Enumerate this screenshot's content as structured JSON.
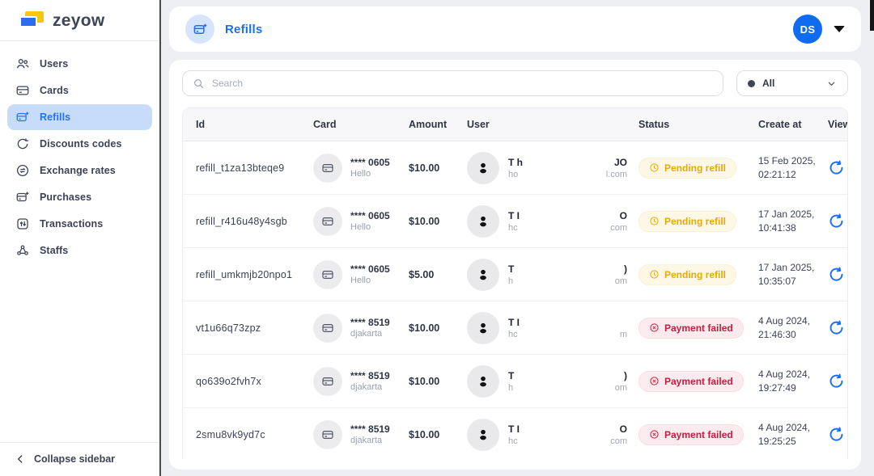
{
  "sidebar": {
    "logo_text": "zeyow",
    "items": [
      {
        "label": "Users",
        "icon": "users-icon",
        "active": false
      },
      {
        "label": "Cards",
        "icon": "cards-icon",
        "active": false
      },
      {
        "label": "Refills",
        "icon": "refills-icon",
        "active": true
      },
      {
        "label": "Discounts codes",
        "icon": "discounts-icon",
        "active": false
      },
      {
        "label": "Exchange rates",
        "icon": "exchange-icon",
        "active": false
      },
      {
        "label": "Purchases",
        "icon": "purchases-icon",
        "active": false
      },
      {
        "label": "Transactions",
        "icon": "transactions-icon",
        "active": false
      },
      {
        "label": "Staffs",
        "icon": "staffs-icon",
        "active": false
      }
    ],
    "collapse_label": "Collapse sidebar"
  },
  "header": {
    "title": "Refills",
    "avatar_initials": "DS"
  },
  "filters": {
    "search_placeholder": "Search",
    "status_filter_value": "All"
  },
  "table": {
    "columns": [
      "Id",
      "Card",
      "Amount",
      "User",
      "Status",
      "Create at",
      "View"
    ],
    "rows": [
      {
        "id": "refill_t1za13bteqe9",
        "card_last4": "**** 0605",
        "card_name": "Hello",
        "amount": "$10.00",
        "user_name_left": "T h",
        "user_name_right": "JO",
        "user_email_left": "ho",
        "user_email_right": "l.com",
        "status": "Pending refill",
        "status_type": "pending",
        "created_at": "15 Feb 2025, 02:21:12"
      },
      {
        "id": "refill_r416u48y4sgb",
        "card_last4": "**** 0605",
        "card_name": "Hello",
        "amount": "$10.00",
        "user_name_left": "T I",
        "user_name_right": "O",
        "user_email_left": "hc",
        "user_email_right": "com",
        "status": "Pending refill",
        "status_type": "pending",
        "created_at": "17 Jan 2025, 10:41:38"
      },
      {
        "id": "refill_umkmjb20npo1",
        "card_last4": "**** 0605",
        "card_name": "Hello",
        "amount": "$5.00",
        "user_name_left": "T",
        "user_name_right": ")",
        "user_email_left": "h",
        "user_email_right": "om",
        "status": "Pending refill",
        "status_type": "pending",
        "created_at": "17 Jan 2025, 10:35:07"
      },
      {
        "id": "vt1u66q73zpz",
        "card_last4": "**** 8519",
        "card_name": "djakarta",
        "amount": "$10.00",
        "user_name_left": "T I",
        "user_name_right": "",
        "user_email_left": "hc",
        "user_email_right": "m",
        "status": "Payment failed",
        "status_type": "failed",
        "created_at": "4 Aug 2024, 21:46:30"
      },
      {
        "id": "qo639o2fvh7x",
        "card_last4": "**** 8519",
        "card_name": "djakarta",
        "amount": "$10.00",
        "user_name_left": "T",
        "user_name_right": ")",
        "user_email_left": "h",
        "user_email_right": "om",
        "status": "Payment failed",
        "status_type": "failed",
        "created_at": "4 Aug 2024, 19:27:49"
      },
      {
        "id": "2smu8vk9yd7c",
        "card_last4": "**** 8519",
        "card_name": "djakarta",
        "amount": "$10.00",
        "user_name_left": "T I",
        "user_name_right": "O",
        "user_email_left": "hc",
        "user_email_right": "com",
        "status": "Payment failed",
        "status_type": "failed",
        "created_at": "4 Aug 2024, 19:25:25"
      }
    ]
  },
  "colors": {
    "accent_blue": "#1d6ff2",
    "selected_item_bg": "#c7dcfa",
    "pending_text": "#e3ab09",
    "pending_bg": "#fdf8e6",
    "failed_text": "#c21e3f",
    "failed_bg": "#fcebee",
    "avatar_bg": "#0f6bf0",
    "logo_yellow": "#f7c60d",
    "logo_blue": "#2b6cf0"
  }
}
